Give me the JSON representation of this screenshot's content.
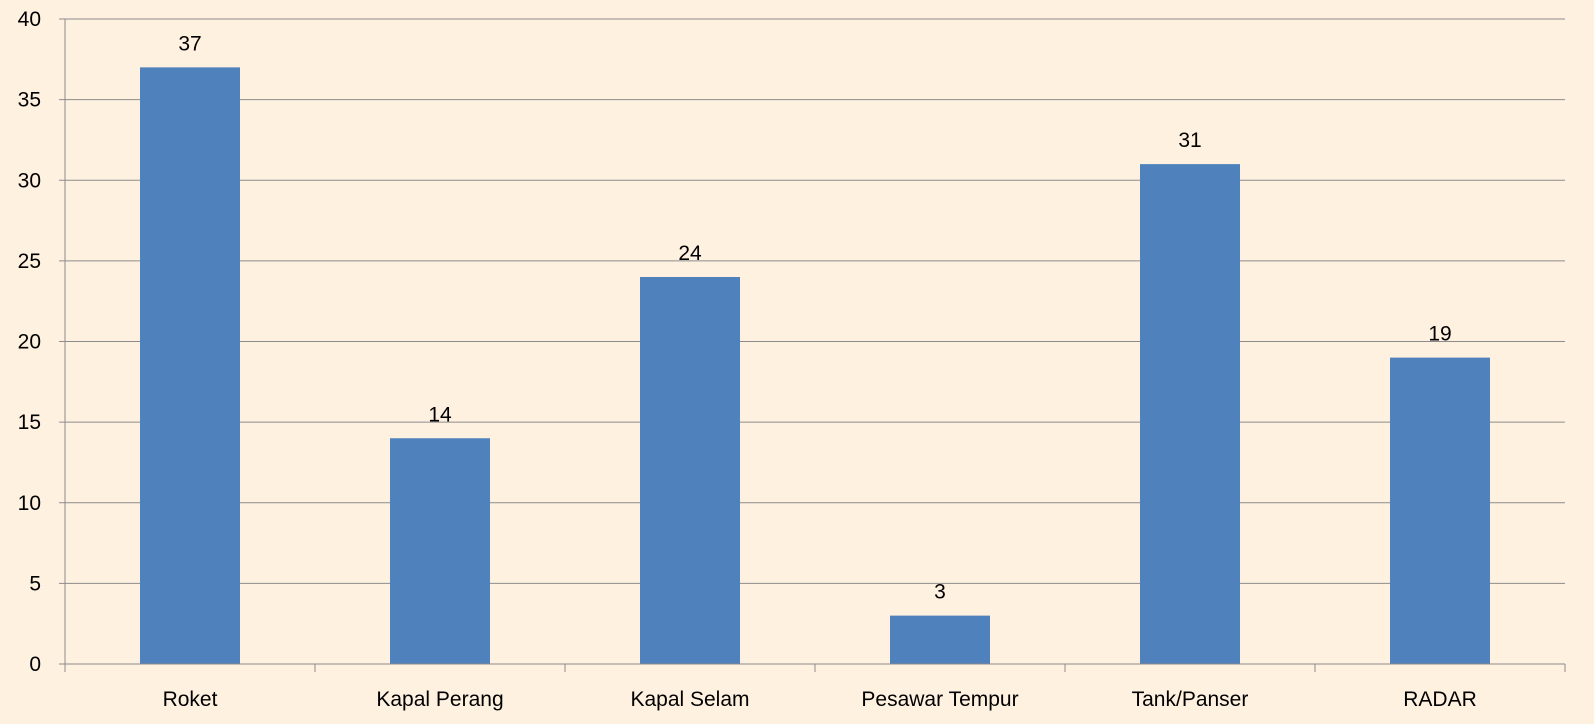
{
  "chart_data": {
    "type": "bar",
    "title": "",
    "xlabel": "",
    "ylabel": "",
    "categories": [
      "Roket",
      "Kapal Perang",
      "Kapal Selam",
      "Pesawar Tempur",
      "Tank/Panser",
      "RADAR"
    ],
    "values": [
      37,
      14,
      24,
      3,
      31,
      19
    ],
    "ylim": [
      0,
      40
    ],
    "yticks": [
      0,
      5,
      10,
      15,
      20,
      25,
      30,
      35,
      40
    ],
    "grid": true,
    "legend": "none",
    "data_labels": true,
    "colors": {
      "background": "#FFF1E0",
      "bar": "#4F81BD",
      "grid": "#8C8C8C"
    }
  }
}
